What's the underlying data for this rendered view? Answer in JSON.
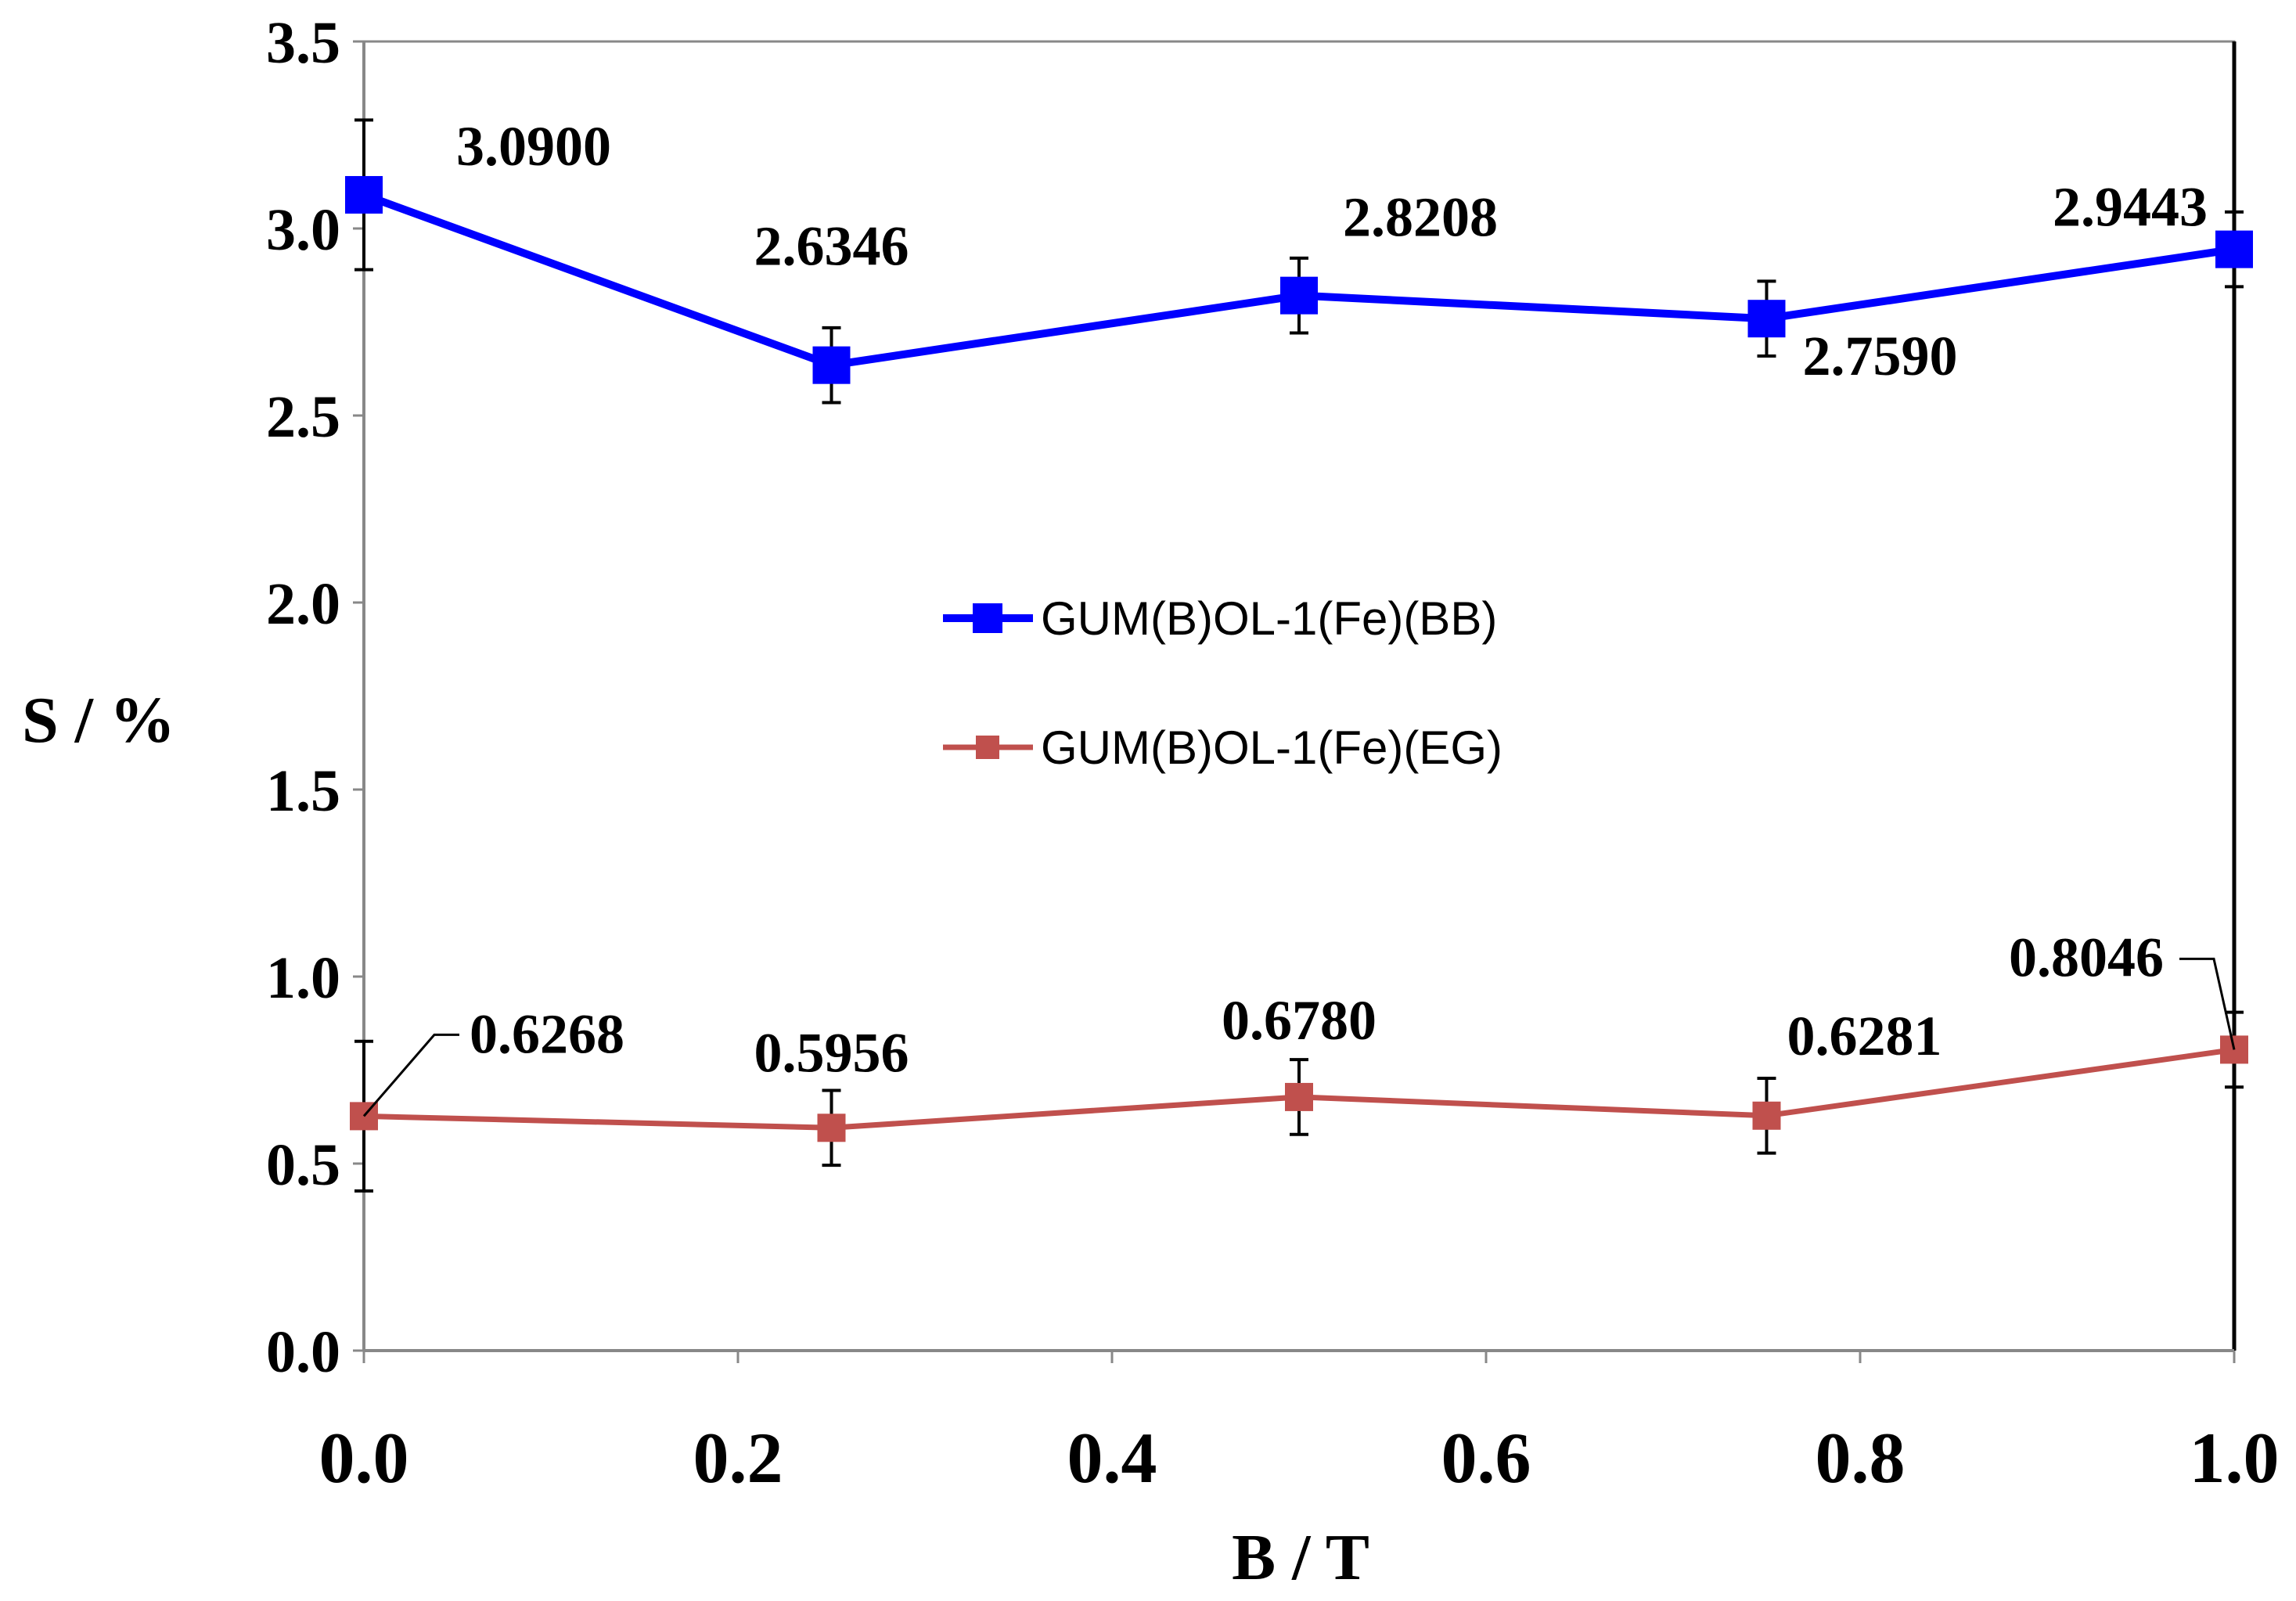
{
  "chart_data": {
    "type": "line",
    "title": "",
    "xlabel": "B / T",
    "ylabel": "S / %",
    "xlim": [
      0,
      1.0
    ],
    "ylim": [
      0,
      3.5
    ],
    "x_ticks": [
      0.0,
      0.2,
      0.4,
      0.6,
      0.8,
      1.0
    ],
    "x_tick_labels": [
      "0.0",
      "0.2",
      "0.4",
      "0.6",
      "0.8",
      "1.0"
    ],
    "y_ticks": [
      0.0,
      0.5,
      1.0,
      1.5,
      2.0,
      2.5,
      3.0,
      3.5
    ],
    "y_tick_labels": [
      "0.0",
      "0.5",
      "1.0",
      "1.5",
      "2.0",
      "2.5",
      "3.0",
      "3.5"
    ],
    "grid": false,
    "legend_position": "center",
    "series": [
      {
        "name": "GUM(B)OL-1(Fe)(BB)",
        "color": "#0000ff",
        "marker": "square",
        "x": [
          0,
          0.25,
          0.5,
          0.75,
          1.0
        ],
        "values": [
          3.09,
          2.6346,
          2.8208,
          2.759,
          2.9443
        ],
        "errors": [
          0.2,
          0.1,
          0.1,
          0.1,
          0.1
        ],
        "labels": [
          "3.0900",
          "2.6346",
          "2.8208",
          "2.7590",
          "2.9443"
        ]
      },
      {
        "name": "GUM(B)OL-1(Fe)(EG)",
        "color": "#c0504d",
        "marker": "square",
        "x": [
          0,
          0.25,
          0.5,
          0.75,
          1.0
        ],
        "values": [
          0.6268,
          0.5956,
          0.678,
          0.6281,
          0.8046
        ],
        "errors": [
          0.2,
          0.1,
          0.1,
          0.1,
          0.1
        ],
        "labels": [
          "0.6268",
          "0.5956",
          "0.6780",
          "0.6281",
          "0.8046"
        ]
      }
    ]
  }
}
